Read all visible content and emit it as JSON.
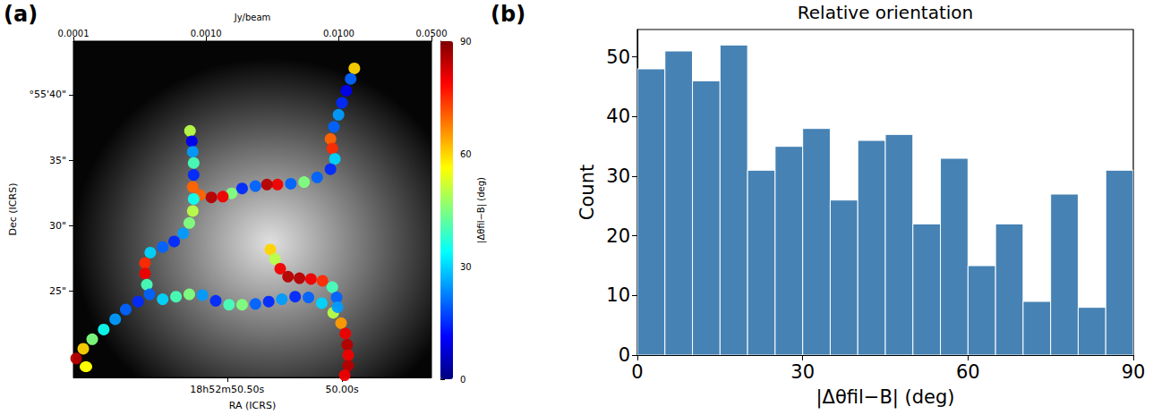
{
  "chart_data": [
    {
      "type": "scatter",
      "panel": "(a)",
      "xlabel": "RA (ICRS)",
      "ylabel": "Dec (ICRS)",
      "xlim": [
        51.17,
        49.61
      ],
      "xticks": [
        {
          "value": 50.5,
          "label": "18h52m50.50s"
        },
        {
          "value": 50.0,
          "label": "50.00s"
        }
      ],
      "ylim": [
        18.4,
        44.1
      ],
      "yticks": [
        {
          "value": 40,
          "label": "°55'40\""
        },
        {
          "value": 35,
          "label": "35\""
        },
        {
          "value": 30,
          "label": "30\""
        },
        {
          "value": 25,
          "label": "25\""
        }
      ],
      "intensity_colorbar": {
        "label": "Jy/beam",
        "log": true,
        "range": [
          0.0001,
          0.05
        ],
        "ticks": [
          {
            "value": 0.0001,
            "label": "0.0001"
          },
          {
            "value": 0.001,
            "label": "0.0010"
          },
          {
            "value": 0.01,
            "label": "0.0100"
          },
          {
            "value": 0.05,
            "label": "0.0500"
          }
        ]
      },
      "angle_colorbar": {
        "label": "|Δθfil−B| (deg)",
        "range": [
          0,
          90
        ],
        "ticks": [
          0,
          30,
          60,
          90
        ],
        "colors": [
          "#00007f",
          "#0000ff",
          "#007fff",
          "#00ffff",
          "#7fff7f",
          "#ffff00",
          "#ff7f00",
          "#ff0000",
          "#7f0000"
        ]
      },
      "marker": "circle",
      "series": [
        {
          "values": [
            [
              49.946,
              42.02,
              60
            ],
            [
              49.962,
              41.22,
              20
            ],
            [
              49.981,
              40.31,
              10
            ],
            [
              50.0,
              39.39,
              15
            ],
            [
              50.015,
              38.47,
              25
            ],
            [
              50.035,
              37.55,
              20
            ],
            [
              50.05,
              36.63,
              70
            ],
            [
              50.042,
              35.9,
              75
            ],
            [
              50.031,
              35.1,
              30
            ],
            [
              50.05,
              34.31,
              15
            ],
            [
              50.108,
              33.69,
              20
            ],
            [
              50.165,
              33.33,
              45
            ],
            [
              50.223,
              33.2,
              20
            ],
            [
              50.281,
              33.14,
              80
            ],
            [
              50.327,
              33.14,
              85
            ],
            [
              50.377,
              33.02,
              20
            ],
            [
              50.435,
              32.84,
              15
            ],
            [
              50.481,
              32.47,
              45
            ],
            [
              50.519,
              32.22,
              80
            ],
            [
              50.569,
              32.16,
              85
            ],
            [
              50.619,
              32.35,
              70
            ]
          ]
        },
        {
          "values": [
            [
              50.662,
              37.24,
              50
            ],
            [
              50.654,
              36.45,
              10
            ],
            [
              50.65,
              35.65,
              25
            ],
            [
              50.646,
              34.79,
              40
            ],
            [
              50.646,
              33.88,
              15
            ],
            [
              50.65,
              32.96,
              70
            ],
            [
              50.646,
              32.04,
              35
            ],
            [
              50.65,
              31.12,
              50
            ],
            [
              50.665,
              30.2,
              45
            ],
            [
              50.692,
              29.41,
              25
            ],
            [
              50.731,
              28.79,
              15
            ],
            [
              50.781,
              28.37,
              20
            ],
            [
              50.835,
              27.94,
              30
            ],
            [
              50.858,
              27.14,
              75
            ],
            [
              50.858,
              26.34,
              80
            ],
            [
              50.85,
              25.49,
              40
            ],
            [
              50.838,
              24.75,
              20
            ]
          ]
        },
        {
          "values": [
            [
              50.888,
              24.2,
              15
            ],
            [
              50.942,
              23.59,
              20
            ],
            [
              50.988,
              22.85,
              25
            ],
            [
              51.038,
              22.06,
              35
            ],
            [
              51.088,
              21.32,
              45
            ],
            [
              51.127,
              20.59,
              60
            ],
            [
              51.158,
              19.85,
              85
            ]
          ]
        },
        {
          "values": [
            [
              50.781,
              24.38,
              30
            ],
            [
              50.723,
              24.57,
              40
            ],
            [
              50.665,
              24.75,
              45
            ],
            [
              50.608,
              24.69,
              25
            ],
            [
              50.55,
              24.26,
              15
            ],
            [
              50.492,
              23.96,
              40
            ],
            [
              50.435,
              23.96,
              45
            ],
            [
              50.377,
              24.02,
              20
            ],
            [
              50.319,
              24.2,
              15
            ],
            [
              50.262,
              24.38,
              25
            ],
            [
              50.204,
              24.57,
              15
            ],
            [
              50.146,
              24.51,
              20
            ],
            [
              50.088,
              24.08,
              30
            ],
            [
              50.038,
              23.34,
              50
            ],
            [
              50.004,
              22.55,
              65
            ],
            [
              49.985,
              21.75,
              80
            ],
            [
              49.977,
              20.89,
              85
            ],
            [
              49.973,
              20.1,
              80
            ],
            [
              49.973,
              19.3,
              85
            ],
            [
              49.988,
              18.57,
              80
            ]
          ]
        },
        {
          "values": [
            [
              50.312,
              28.18,
              60
            ],
            [
              50.292,
              27.45,
              50
            ],
            [
              50.269,
              26.71,
              80
            ],
            [
              50.235,
              26.1,
              85
            ],
            [
              50.185,
              25.98,
              85
            ],
            [
              50.135,
              25.92,
              80
            ],
            [
              50.085,
              25.79,
              75
            ],
            [
              50.042,
              25.3,
              40
            ],
            [
              50.023,
              24.51,
              20
            ],
            [
              50.019,
              23.77,
              25
            ]
          ]
        }
      ]
    },
    {
      "type": "histogram",
      "panel": "(b)",
      "title": "Relative orientation",
      "xlabel": "|Δθfil−B| (deg)",
      "ylabel": "Count",
      "bins": [
        0,
        5,
        10,
        15,
        20,
        25,
        30,
        35,
        40,
        45,
        50,
        55,
        60,
        65,
        70,
        75,
        80,
        85,
        90
      ],
      "values": [
        48,
        51,
        46,
        52,
        31,
        35,
        38,
        26,
        36,
        37,
        22,
        33,
        15,
        22,
        9,
        27,
        8,
        31
      ],
      "color": "#4682b4",
      "xlim": [
        0,
        90
      ],
      "xticks": [
        0,
        30,
        60,
        90
      ],
      "ylim": [
        0,
        54.6
      ],
      "yticks": [
        0,
        10,
        20,
        30,
        40,
        50
      ]
    }
  ]
}
